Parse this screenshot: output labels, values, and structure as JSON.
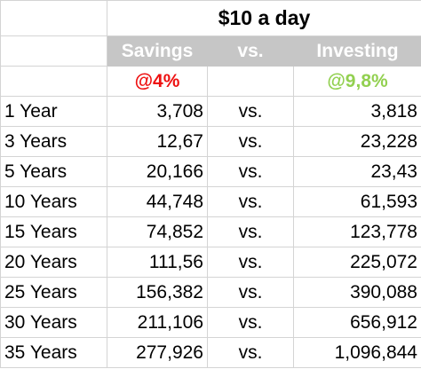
{
  "title": "$10 a day",
  "headers": {
    "savings": "Savings",
    "vs": "vs.",
    "investing": "Investing"
  },
  "rates": {
    "savings": "@4%",
    "investing": "@9,8%"
  },
  "colors": {
    "header_bg": "#c6c6c6",
    "savings_rate": "#ee1111",
    "investing_rate": "#92d050"
  },
  "rows": [
    {
      "period": "1 Year",
      "savings": "3,708",
      "vs": "vs.",
      "investing": "3,818"
    },
    {
      "period": "3 Years",
      "savings": "12,67",
      "vs": "vs.",
      "investing": "23,228"
    },
    {
      "period": "5 Years",
      "savings": "20,166",
      "vs": "vs.",
      "investing": "23,43"
    },
    {
      "period": "10 Years",
      "savings": "44,748",
      "vs": "vs.",
      "investing": "61,593"
    },
    {
      "period": "15 Years",
      "savings": "74,852",
      "vs": "vs.",
      "investing": "123,778"
    },
    {
      "period": "20 Years",
      "savings": "111,56",
      "vs": "vs.",
      "investing": "225,072"
    },
    {
      "period": "25 Years",
      "savings": "156,382",
      "vs": "vs.",
      "investing": "390,088"
    },
    {
      "period": "30 Years",
      "savings": "211,106",
      "vs": "vs.",
      "investing": "656,912"
    },
    {
      "period": "35 Years",
      "savings": "277,926",
      "vs": "vs.",
      "investing": "1,096,844"
    }
  ]
}
